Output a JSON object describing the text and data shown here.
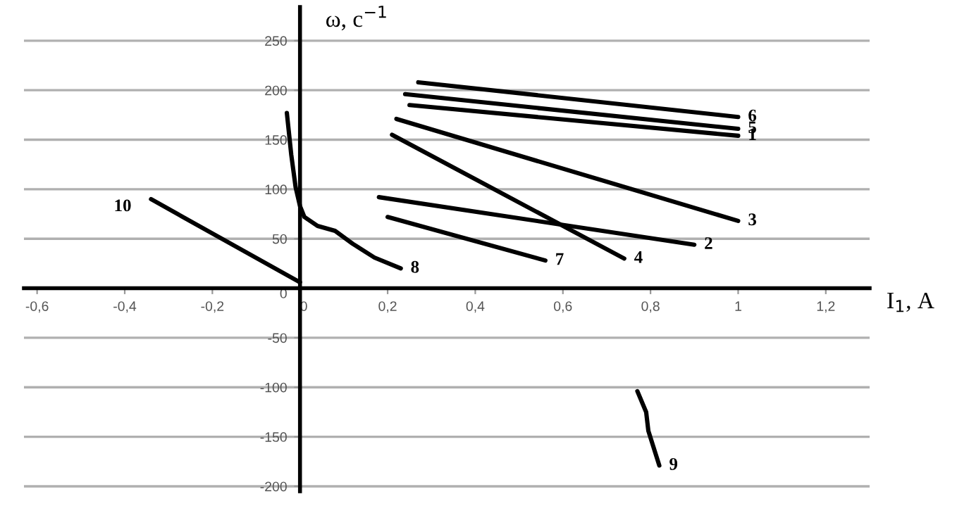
{
  "chart_data": {
    "type": "line",
    "xlabel": "I$_{1}$, A",
    "ylabel": "ω, с$^{−1}$",
    "xlim": [
      -0.63,
      1.3
    ],
    "ylim": [
      -205,
      284
    ],
    "xticks": [
      {
        "value": -0.6,
        "label": "-0,6"
      },
      {
        "value": -0.4,
        "label": "-0,4"
      },
      {
        "value": -0.2,
        "label": "-0,2"
      },
      0,
      {
        "value": 0.2,
        "label": "0,2"
      },
      {
        "value": 0.4,
        "label": "0,4"
      },
      {
        "value": 0.6,
        "label": "0,6"
      },
      {
        "value": 0.8,
        "label": "0,8"
      },
      1,
      {
        "value": 1.2,
        "label": "1,2"
      }
    ],
    "yticks": [
      -200,
      -150,
      -100,
      -50,
      0,
      50,
      100,
      150,
      200,
      250
    ],
    "grid": "y",
    "marker": "none",
    "line_style": "solid",
    "series": [
      {
        "color": "#000000",
        "x": [
          0.25,
          1.0
        ],
        "values": [
          185,
          154
        ]
      },
      {
        "color": "#000000",
        "x": [
          0.18,
          0.9
        ],
        "values": [
          92,
          44
        ]
      },
      {
        "color": "#000000",
        "x": [
          0.22,
          1.0
        ],
        "values": [
          171,
          68
        ]
      },
      {
        "color": "#000000",
        "x": [
          0.21,
          0.74
        ],
        "values": [
          155,
          30
        ]
      },
      {
        "color": "#000000",
        "x": [
          0.24,
          1.0
        ],
        "values": [
          196,
          161
        ]
      },
      {
        "color": "#000000",
        "x": [
          0.27,
          1.0
        ],
        "values": [
          208,
          173
        ]
      },
      {
        "color": "#000000",
        "x": [
          0.2,
          0.56
        ],
        "values": [
          72,
          28
        ]
      },
      {
        "color": "#000000",
        "x": [
          -0.03,
          -0.02,
          -0.01,
          0.0,
          0.01,
          0.04,
          0.08,
          0.12,
          0.17,
          0.23
        ],
        "values": [
          177,
          135,
          102,
          83,
          72,
          63,
          58,
          45,
          31,
          20
        ]
      },
      {
        "color": "#000000",
        "x": [
          0.77,
          0.79,
          0.795,
          0.82
        ],
        "values": [
          -104,
          -125,
          -144,
          -179
        ]
      },
      {
        "color": "#000000",
        "x": [
          -0.34,
          0.0
        ],
        "values": [
          90,
          6
        ]
      }
    ],
    "annotations": [
      {
        "text": "1",
        "x": 1.0,
        "y": 154
      },
      {
        "text": "2",
        "x": 0.9,
        "y": 44
      },
      {
        "text": "3",
        "x": 1.0,
        "y": 68
      },
      {
        "text": "4",
        "x": 0.74,
        "y": 30
      },
      {
        "text": "5",
        "x": 1.0,
        "y": 161
      },
      {
        "text": "6",
        "x": 1.0,
        "y": 173
      },
      {
        "text": "7",
        "x": 0.56,
        "y": 28
      },
      {
        "text": "8",
        "x": 0.23,
        "y": 20
      },
      {
        "text": "9",
        "x": 0.82,
        "y": -179
      },
      {
        "text": "10",
        "x": -0.34,
        "y": 90
      }
    ]
  }
}
